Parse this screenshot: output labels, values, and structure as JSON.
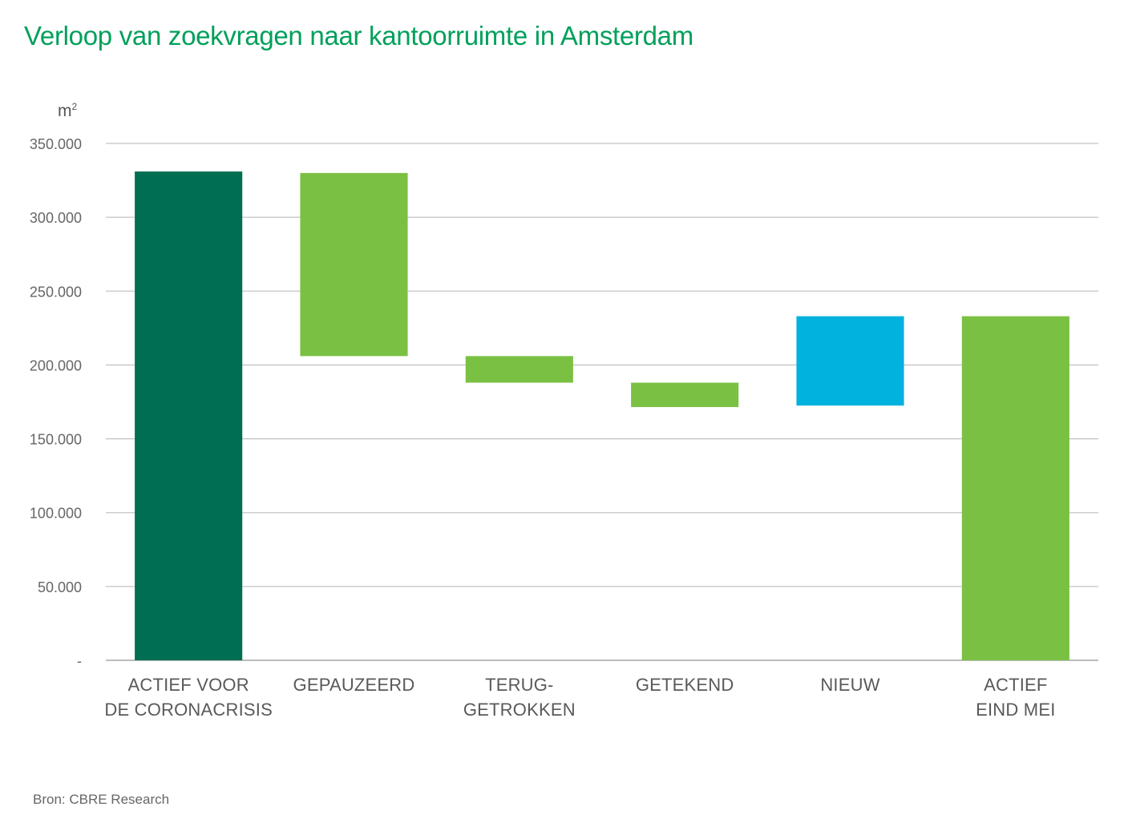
{
  "title": "Verloop van zoekvragen naar kantoorruimte in Amsterdam",
  "unit_label": "m",
  "unit_superscript": "2",
  "source": "Bron: CBRE Research",
  "chart_data": {
    "type": "waterfall",
    "title": "Verloop van zoekvragen naar kantoorruimte in Amsterdam",
    "ylabel": "m²",
    "xlabel": "",
    "ylim": [
      0,
      350000
    ],
    "yticks": [
      0,
      50000,
      100000,
      150000,
      200000,
      250000,
      300000,
      350000
    ],
    "ytick_labels": [
      "-",
      "50.000",
      "100.000",
      "150.000",
      "200.000",
      "250.000",
      "300.000",
      "350.000"
    ],
    "grid": true,
    "categories": [
      [
        "ACTIEF VOOR",
        "DE CORONACRISIS"
      ],
      [
        "GEPAUZEERD"
      ],
      [
        "TERUG-",
        "GETROKKEN"
      ],
      [
        "GETEKEND"
      ],
      [
        "NIEUW"
      ],
      [
        "ACTIEF",
        "EIND MEI"
      ]
    ],
    "bars": [
      {
        "name": "Actief voor de coronacrisis",
        "kind": "total",
        "start": 0,
        "end": 331000,
        "color": "#006F51"
      },
      {
        "name": "Gepauzeerd",
        "kind": "decrease",
        "start": 330000,
        "end": 206000,
        "color": "#7AC143"
      },
      {
        "name": "Teruggetrokken",
        "kind": "decrease",
        "start": 206000,
        "end": 188000,
        "color": "#7AC143"
      },
      {
        "name": "Getekend",
        "kind": "decrease",
        "start": 188000,
        "end": 171500,
        "color": "#7AC143"
      },
      {
        "name": "Nieuw",
        "kind": "increase",
        "start": 172500,
        "end": 233000,
        "color": "#00B2DD"
      },
      {
        "name": "Actief eind mei",
        "kind": "total",
        "start": 0,
        "end": 233000,
        "color": "#7AC143"
      }
    ]
  }
}
